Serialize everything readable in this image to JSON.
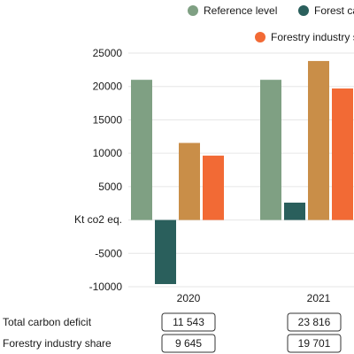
{
  "chart_data": {
    "type": "bar",
    "categories": [
      "2020",
      "2021"
    ],
    "series": [
      {
        "name": "Reference level",
        "color": "#7fa083",
        "values": [
          21000,
          21000
        ]
      },
      {
        "name": "Forest carbon sink",
        "color": "#2a5f5c",
        "values": [
          -9600,
          2600
        ]
      },
      {
        "name": "Total carbon deficit",
        "color": "#c98e48",
        "values": [
          11543,
          23816
        ]
      },
      {
        "name": "Forestry industry share",
        "color": "#f26a35",
        "values": [
          9645,
          19701
        ]
      }
    ],
    "legend": [
      {
        "label": "Reference level",
        "color": "#7fa083"
      },
      {
        "label": "Forest ca",
        "color": "#2a5f5c"
      },
      {
        "label": "Forestry industry s",
        "color": "#f26a35"
      }
    ],
    "ylabel": "Kt co2 eq.",
    "ylim": [
      -10000,
      25000
    ],
    "yticks": [
      25000,
      20000,
      15000,
      10000,
      5000,
      0,
      -5000,
      -10000
    ],
    "ytick_labels": [
      "25000",
      "20000",
      "15000",
      "10000",
      "5000",
      "",
      "-5000",
      "-10000"
    ],
    "grid": true
  },
  "table": {
    "rows": [
      {
        "label": "Total carbon deficit",
        "values": [
          "11 543",
          "23 816"
        ]
      },
      {
        "label": "Forestry industry share",
        "values": [
          "9 645",
          "19 701"
        ]
      }
    ]
  }
}
